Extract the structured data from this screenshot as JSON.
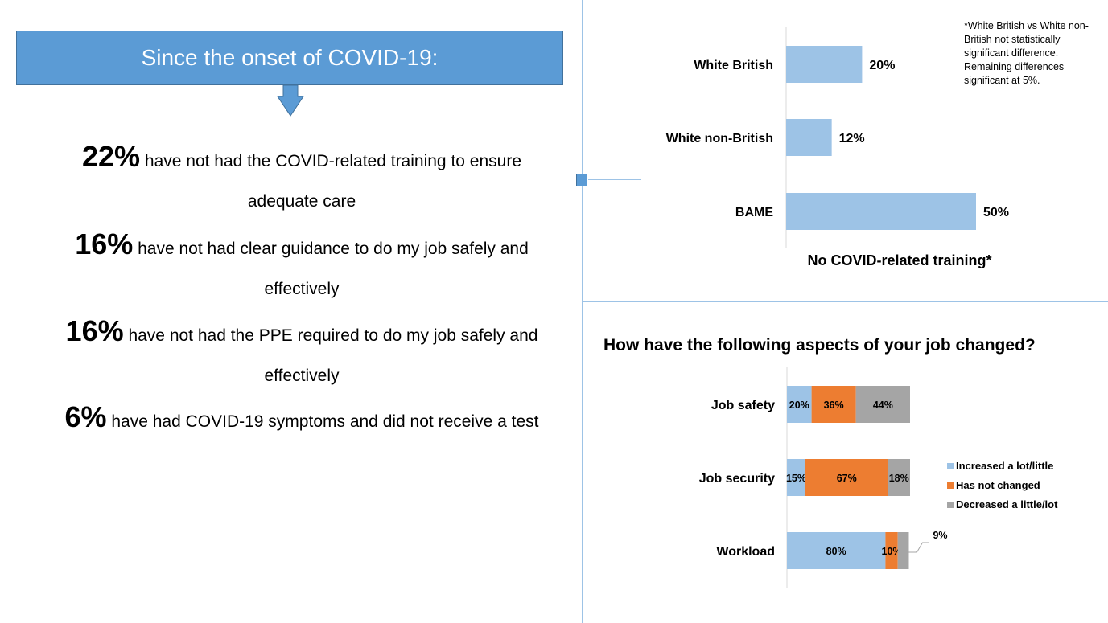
{
  "banner": {
    "title": "Since the onset of COVID-19:"
  },
  "stats": [
    {
      "value": "22%",
      "line1": "have not had the COVID-related training to ensure",
      "line2": "adequate care"
    },
    {
      "value": "16%",
      "line1": "have not had clear guidance to do my job safely and",
      "line2": "effectively"
    },
    {
      "value": "16%",
      "line1": "have not had the PPE required to do my job safely and",
      "line2": "effectively"
    },
    {
      "value": "6%",
      "line1": "have had COVID-19 symptoms and did not receive a test",
      "line2": ""
    }
  ],
  "note": "*White British vs White non-British not statistically significant difference. Remaining differences significant at 5%.",
  "colors": {
    "blue": "#9dc3e6",
    "orange": "#ed7d31",
    "gray": "#a5a5a5",
    "banner": "#5b9bd5"
  },
  "chart_data": [
    {
      "type": "bar",
      "orientation": "horizontal",
      "title": "No COVID-related training*",
      "categories": [
        "White British",
        "White non-British",
        "BAME"
      ],
      "values": [
        20,
        12,
        50
      ],
      "labels": [
        "20%",
        "12%",
        "50%"
      ],
      "xlim": [
        0,
        100
      ],
      "grid": false
    },
    {
      "type": "bar",
      "orientation": "horizontal",
      "stacked": true,
      "title": "How have the following aspects of your job changed?",
      "categories": [
        "Job safety",
        "Job security",
        "Workload"
      ],
      "series": [
        {
          "name": "Increased a lot/little",
          "values": [
            20,
            15,
            80
          ],
          "labels": [
            "20%",
            "15%",
            "80%"
          ],
          "color": "#9dc3e6"
        },
        {
          "name": "Has not changed",
          "values": [
            36,
            67,
            10
          ],
          "labels": [
            "36%",
            "67%",
            "10%"
          ],
          "color": "#ed7d31"
        },
        {
          "name": "Decreased a little/lot",
          "values": [
            44,
            18,
            9
          ],
          "labels": [
            "44%",
            "18%",
            "9%"
          ],
          "color": "#a5a5a5"
        }
      ],
      "xlim": [
        0,
        100
      ],
      "legend": "right",
      "grid": false
    }
  ]
}
